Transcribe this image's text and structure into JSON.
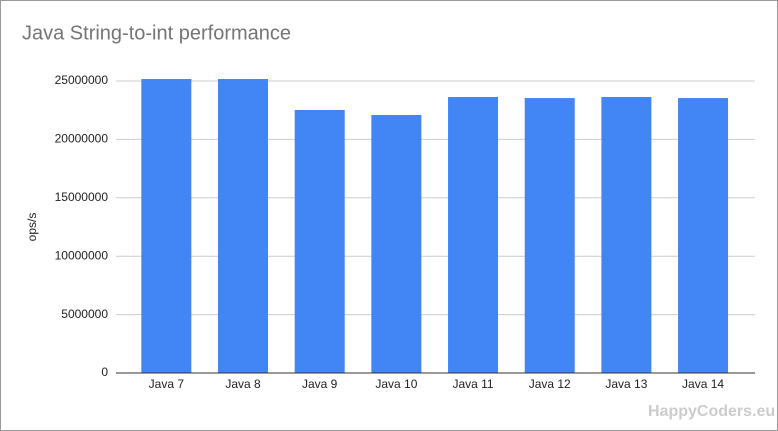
{
  "chart_data": {
    "type": "bar",
    "title": "Java String-to-int performance",
    "y_label": "ops/s",
    "categories": [
      "Java 7",
      "Java 8",
      "Java 9",
      "Java 10",
      "Java 11",
      "Java 12",
      "Java 13",
      "Java 14"
    ],
    "values": [
      25170000,
      25170000,
      22520000,
      22090000,
      23630000,
      23540000,
      23630000,
      23540000
    ],
    "color": "#4285f4",
    "ylim": [
      0,
      25000000
    ],
    "yticks": [
      0,
      5000000,
      10000000,
      15000000,
      20000000,
      25000000
    ],
    "grid": true,
    "watermark": "HappyCoders.eu"
  }
}
